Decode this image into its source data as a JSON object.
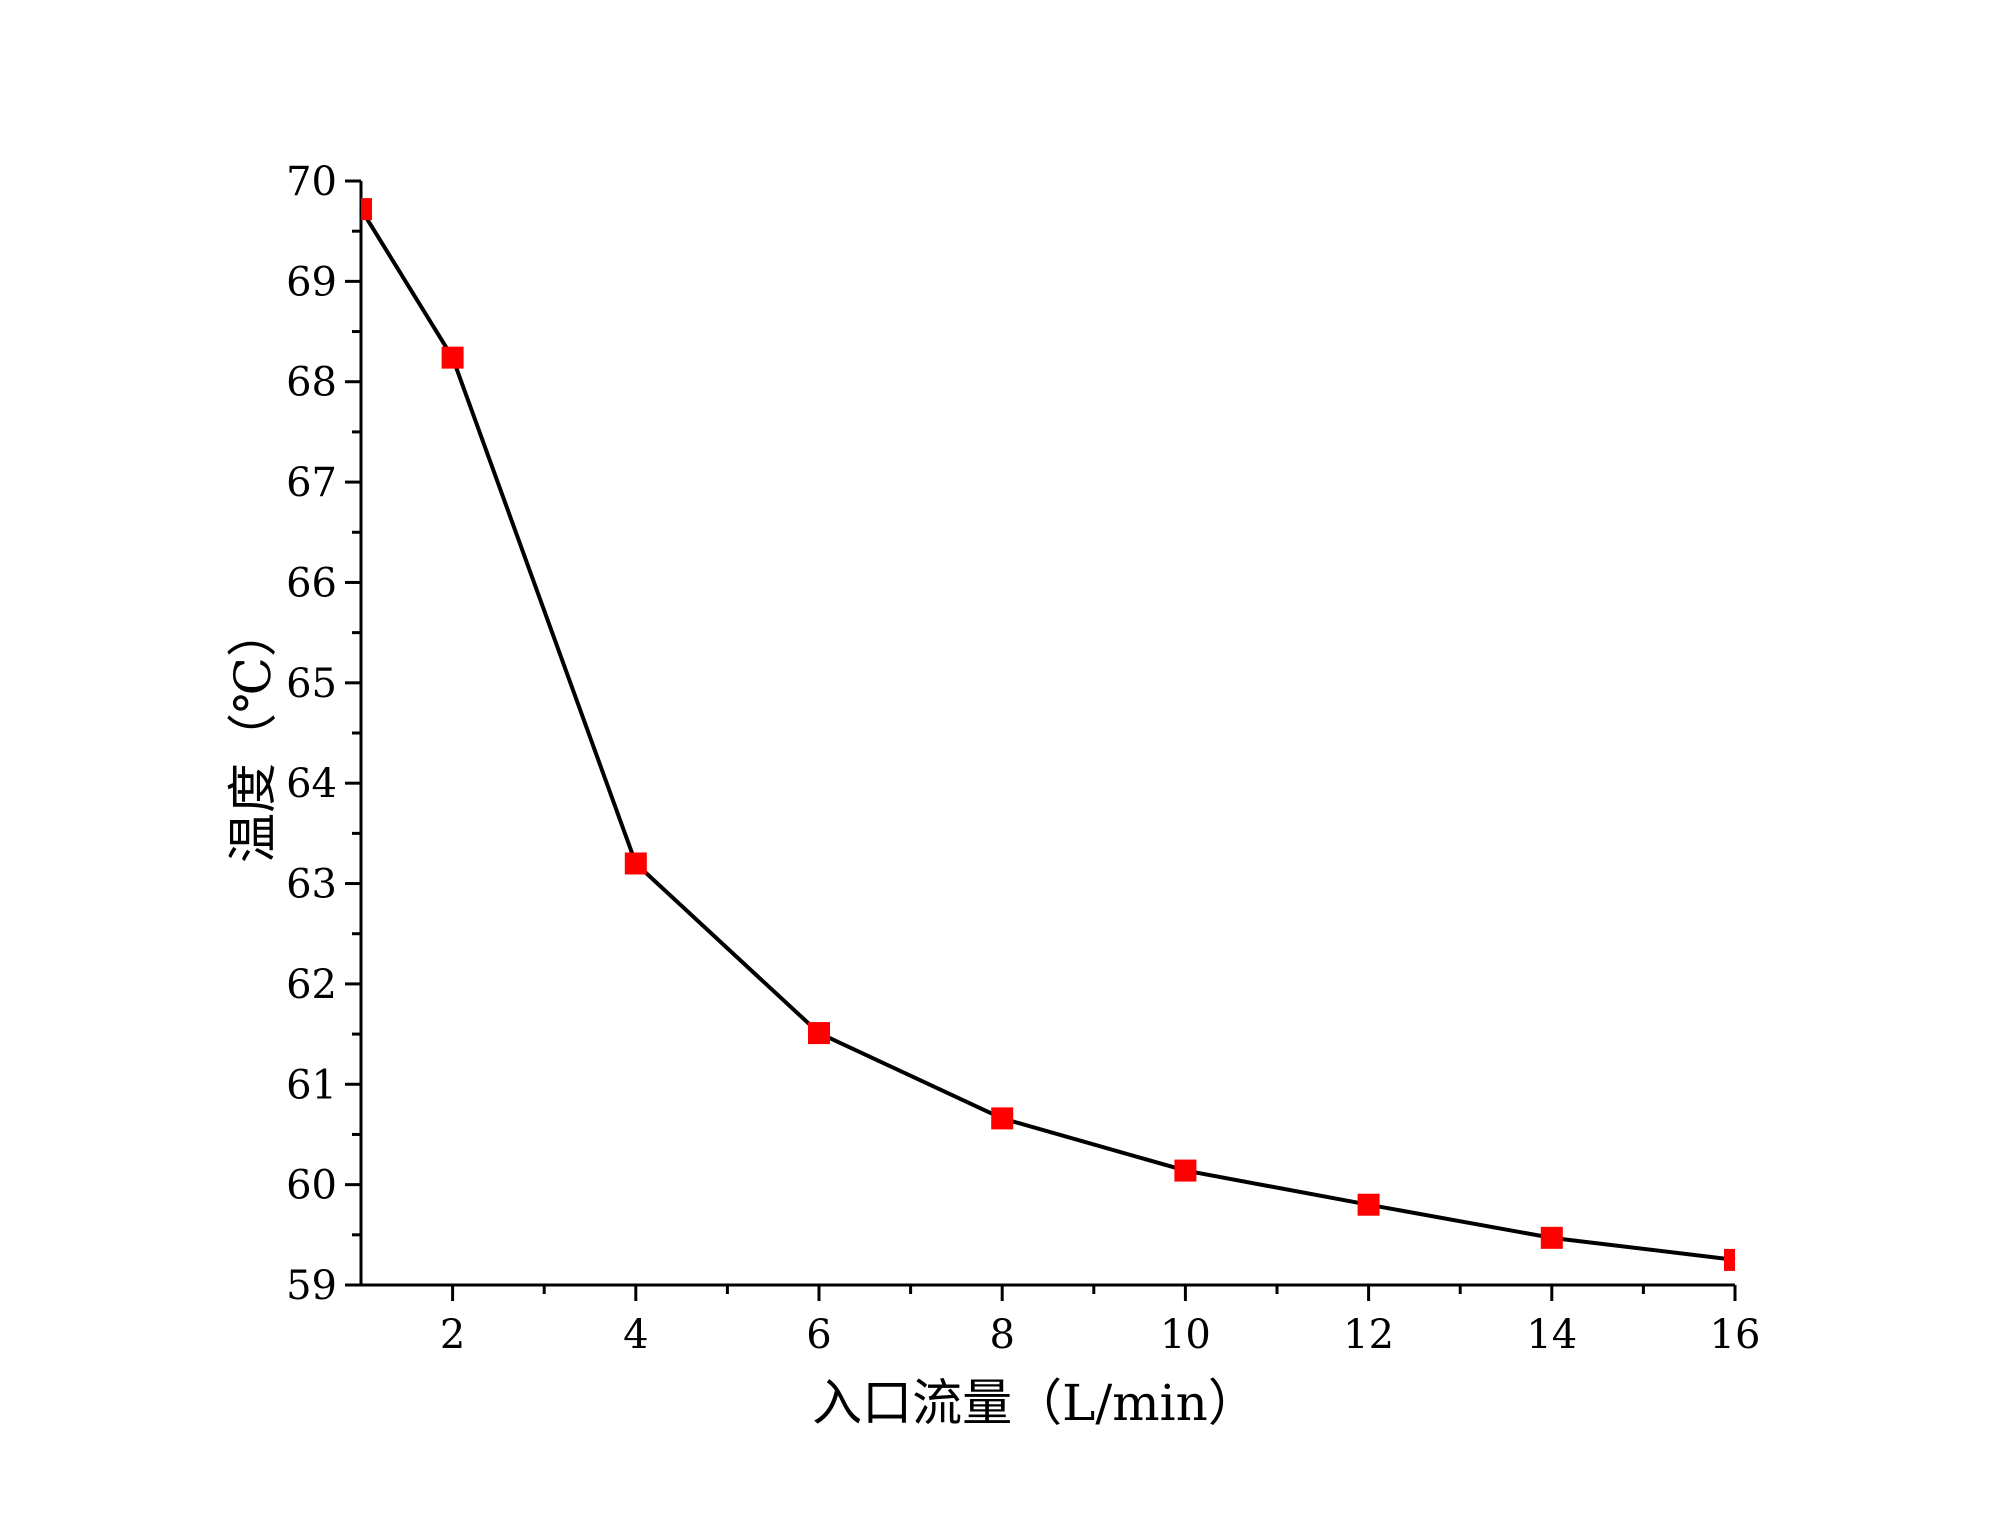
{
  "chart_data": {
    "type": "line",
    "title": "",
    "xlabel": "入口流量（L/min）",
    "ylabel": "温度（℃）",
    "xlim": [
      1,
      16
    ],
    "ylim": [
      59,
      70
    ],
    "x_ticks": [
      2,
      4,
      6,
      8,
      10,
      12,
      14,
      16
    ],
    "x_tick_labels": [
      "2",
      "4",
      "6",
      "8",
      "10",
      "12",
      "14",
      "16"
    ],
    "y_ticks": [
      59,
      60,
      61,
      62,
      63,
      64,
      65,
      66,
      67,
      68,
      69,
      70
    ],
    "y_tick_labels": [
      "59",
      "60",
      "61",
      "62",
      "63",
      "64",
      "65",
      "66",
      "67",
      "68",
      "69",
      "70"
    ],
    "grid": false,
    "legend": "none",
    "series": [
      {
        "x": [
          1,
          2,
          4,
          6,
          8,
          10,
          12,
          14,
          16
        ],
        "y": [
          69.72,
          68.24,
          63.2,
          61.51,
          60.66,
          60.14,
          59.8,
          59.47,
          59.25
        ],
        "line_color": "#000000",
        "marker": "square",
        "marker_color": "#ff0000"
      }
    ]
  }
}
